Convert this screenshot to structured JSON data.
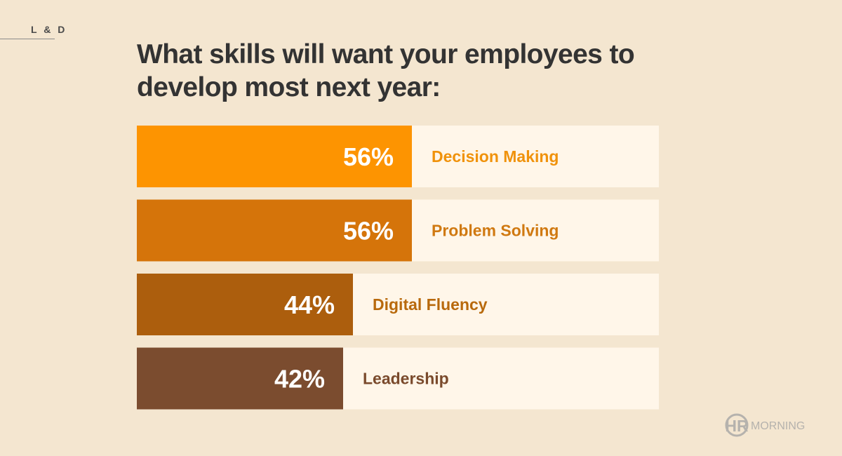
{
  "header": {
    "section_tag": "L & D"
  },
  "chart_data": {
    "type": "bar",
    "orientation": "horizontal",
    "title": "What skills will want your employees to develop most next year:",
    "categories": [
      "Decision Making",
      "Problem Solving",
      "Digital Fluency",
      "Leadership"
    ],
    "values": [
      56,
      56,
      44,
      42
    ],
    "value_labels": [
      "56%",
      "56%",
      "44%",
      "42%"
    ],
    "unit": "%",
    "xlim": [
      0,
      100
    ],
    "grid": false,
    "legend": "none",
    "colors": {
      "bars": [
        "#fd9401",
        "#d5740a",
        "#ac5e0d",
        "#7b4c2f"
      ],
      "labels": [
        "#f0920b",
        "#d07911",
        "#b8690c",
        "#7a4a2c"
      ],
      "track": "#fff6e9",
      "value_text": "#ffffff"
    }
  },
  "footer": {
    "logo_mark": "HR",
    "logo_word": "MORNING",
    "logo_color": "#b5b2ad"
  }
}
